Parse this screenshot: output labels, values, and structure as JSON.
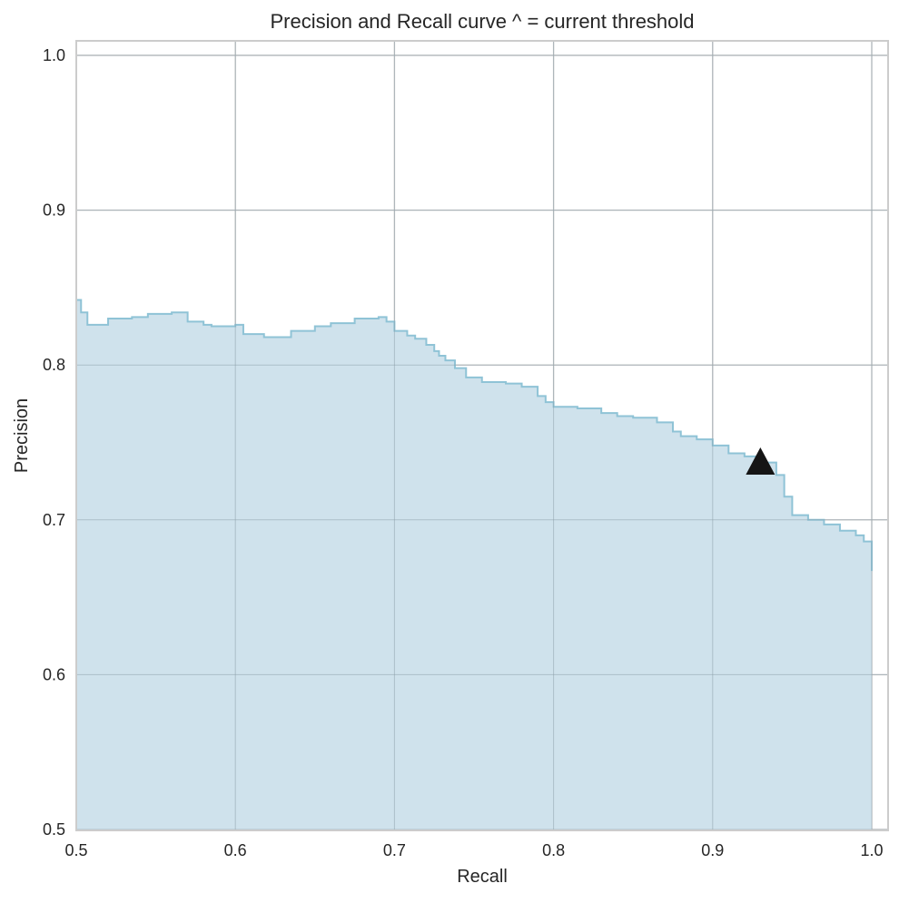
{
  "chart_data": {
    "type": "area",
    "title": "Precision and Recall curve ^ = current threshold",
    "xlabel": "Recall",
    "ylabel": "Precision",
    "xlim": [
      0.5,
      1.0
    ],
    "ylim": [
      0.5,
      1.0
    ],
    "xticks": [
      "0.5",
      "0.6",
      "0.7",
      "0.8",
      "0.9",
      "1.0"
    ],
    "yticks": [
      "0.5",
      "0.6",
      "0.7",
      "0.8",
      "0.9",
      "1.0"
    ],
    "grid": true,
    "fill_color": "#cfe2ec",
    "line_color": "#8fc3d6",
    "marker_color": "#151515",
    "series": [
      {
        "recall": [
          0.5,
          0.503,
          0.507,
          0.52,
          0.535,
          0.545,
          0.56,
          0.57,
          0.58,
          0.585,
          0.6,
          0.605,
          0.618,
          0.635,
          0.65,
          0.66,
          0.675,
          0.69,
          0.695,
          0.7,
          0.708,
          0.713,
          0.72,
          0.725,
          0.728,
          0.732,
          0.738,
          0.745,
          0.755,
          0.77,
          0.78,
          0.79,
          0.795,
          0.8,
          0.815,
          0.83,
          0.84,
          0.85,
          0.865,
          0.875,
          0.88,
          0.89,
          0.9,
          0.91,
          0.92,
          0.93,
          0.94,
          0.945,
          0.95,
          0.96,
          0.97,
          0.98,
          0.99,
          0.995,
          1.0
        ],
        "precision": [
          0.842,
          0.834,
          0.826,
          0.83,
          0.831,
          0.833,
          0.834,
          0.828,
          0.826,
          0.825,
          0.826,
          0.82,
          0.818,
          0.822,
          0.825,
          0.827,
          0.83,
          0.831,
          0.828,
          0.822,
          0.819,
          0.817,
          0.813,
          0.809,
          0.806,
          0.803,
          0.798,
          0.792,
          0.789,
          0.788,
          0.786,
          0.78,
          0.776,
          0.773,
          0.772,
          0.769,
          0.767,
          0.766,
          0.763,
          0.757,
          0.754,
          0.752,
          0.748,
          0.743,
          0.741,
          0.737,
          0.729,
          0.715,
          0.703,
          0.7,
          0.697,
          0.693,
          0.69,
          0.686,
          0.667
        ]
      }
    ],
    "current_threshold": {
      "recall": 0.93,
      "precision": 0.738
    }
  }
}
